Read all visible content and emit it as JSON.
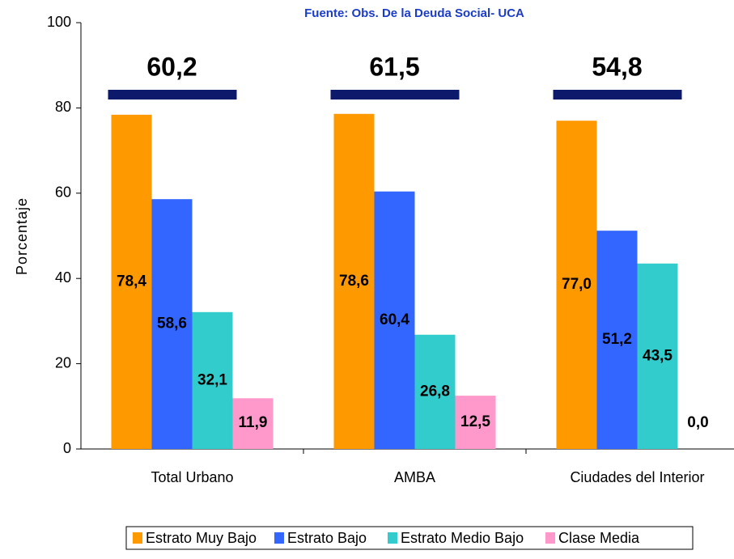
{
  "chart_data": {
    "type": "bar",
    "title": "Fuente: Obs. De la Deuda Social- UCA",
    "y_label": "Porcentaje",
    "categories": [
      "Total Urbano",
      "AMBA",
      "Ciudades del Interior"
    ],
    "totals": {
      "values": [
        60.2,
        61.5,
        54.8
      ],
      "value_labels": [
        "60,2",
        "61,5",
        "54,8"
      ],
      "color": "#0d1a6b"
    },
    "series": [
      {
        "name": "Estrato Muy Bajo",
        "color": "#ff9900",
        "values": [
          78.4,
          78.6,
          77.0
        ],
        "value_labels": [
          "78,4",
          "78,6",
          "77,0"
        ]
      },
      {
        "name": "Estrato Bajo",
        "color": "#3366ff",
        "values": [
          58.6,
          60.4,
          51.2
        ],
        "value_labels": [
          "58,6",
          "60,4",
          "51,2"
        ]
      },
      {
        "name": "Estrato Medio Bajo",
        "color": "#33cccc",
        "values": [
          32.1,
          26.8,
          43.5
        ],
        "value_labels": [
          "32,1",
          "26,8",
          "43,5"
        ]
      },
      {
        "name": "Clase Media",
        "color": "#ff99cc",
        "values": [
          11.9,
          12.5,
          0.0
        ],
        "value_labels": [
          "11,9",
          "12,5",
          "0,0"
        ]
      }
    ],
    "ylim": [
      0,
      100
    ],
    "yticks": [
      0,
      20,
      40,
      60,
      80,
      100
    ],
    "grid": false
  }
}
